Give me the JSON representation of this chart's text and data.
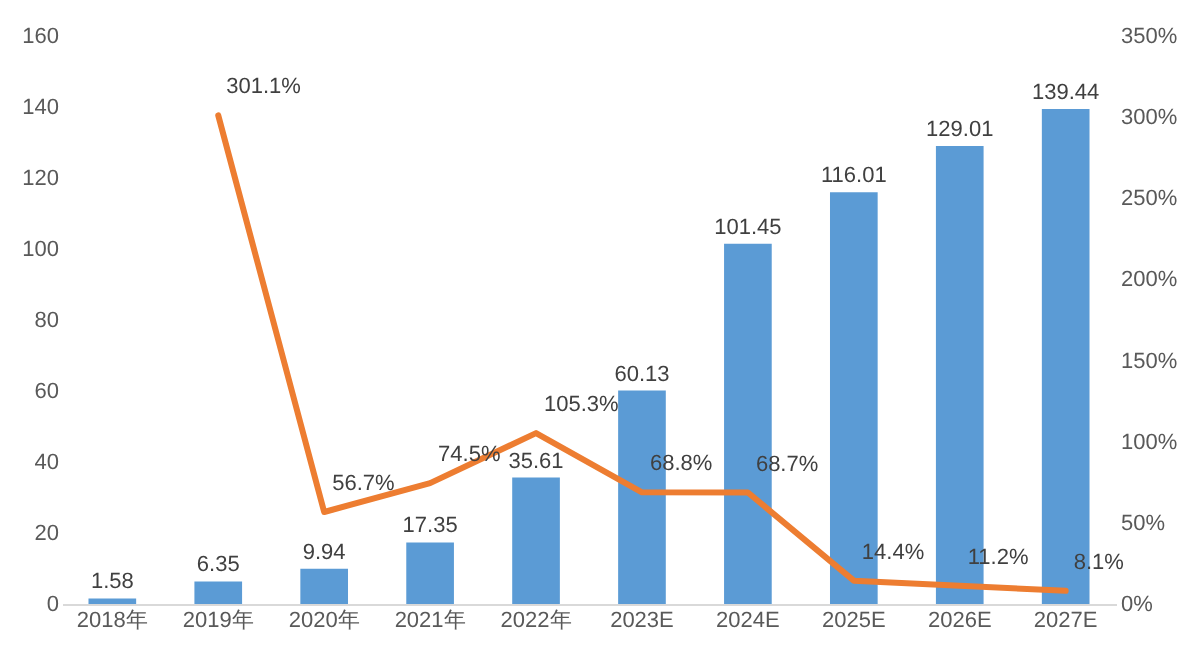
{
  "chart_data": {
    "type": "bar",
    "categories": [
      "2018年",
      "2019年",
      "2020年",
      "2021年",
      "2022年",
      "2023E",
      "2024E",
      "2025E",
      "2026E",
      "2027E"
    ],
    "ylim": [
      0,
      160
    ],
    "yticks": [
      0,
      20,
      40,
      60,
      80,
      100,
      120,
      140,
      160
    ],
    "y2lim": [
      0,
      350
    ],
    "y2ticks": [
      {
        "value": 0,
        "label": "0%"
      },
      {
        "value": 50,
        "label": "50%"
      },
      {
        "value": 100,
        "label": "100%"
      },
      {
        "value": 150,
        "label": "150%"
      },
      {
        "value": 200,
        "label": "200%"
      },
      {
        "value": 250,
        "label": "250%"
      },
      {
        "value": 300,
        "label": "300%"
      },
      {
        "value": 350,
        "label": "350%"
      }
    ],
    "series": [
      {
        "color": "#5b9bd5",
        "values": [
          1.58,
          6.35,
          9.94,
          17.35,
          35.61,
          60.13,
          101.45,
          116.01,
          129.01,
          139.44
        ],
        "value_labels": [
          "1.58",
          "6.35",
          "9.94",
          "17.35",
          "35.61",
          "60.13",
          "101.45",
          "116.01",
          "129.01",
          "139.44"
        ]
      },
      {
        "type": "line",
        "axis": "y2",
        "color": "#ed7d31",
        "values": [
          null,
          301.1,
          56.7,
          74.5,
          105.3,
          68.8,
          68.7,
          14.4,
          11.2,
          8.1
        ],
        "value_labels": [
          null,
          "301.1%",
          "56.7%",
          "74.5%",
          "105.3%",
          "68.8%",
          "68.7%",
          "14.4%",
          "11.2%",
          "8.1%"
        ]
      }
    ]
  }
}
